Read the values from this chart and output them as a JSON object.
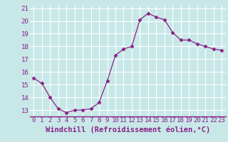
{
  "x": [
    0,
    1,
    2,
    3,
    4,
    5,
    6,
    7,
    8,
    9,
    10,
    11,
    12,
    13,
    14,
    15,
    16,
    17,
    18,
    19,
    20,
    21,
    22,
    23
  ],
  "y": [
    15.5,
    15.1,
    14.0,
    13.1,
    12.8,
    13.0,
    13.0,
    13.1,
    13.6,
    15.3,
    17.3,
    17.8,
    18.0,
    20.1,
    20.6,
    20.3,
    20.1,
    19.1,
    18.5,
    18.5,
    18.2,
    18.0,
    17.8,
    17.7
  ],
  "line_color": "#882288",
  "marker": "D",
  "marker_size": 2.5,
  "background_color": "#c8e8e8",
  "grid_color": "#aacccc",
  "xlabel": "Windchill (Refroidissement éolien,°C)",
  "xlabel_color": "#882288",
  "xlabel_fontsize": 7.5,
  "tick_color": "#882288",
  "tick_fontsize": 6.5,
  "ylim": [
    12.5,
    21.2
  ],
  "xlim": [
    -0.5,
    23.5
  ],
  "yticks": [
    13,
    14,
    15,
    16,
    17,
    18,
    19,
    20,
    21
  ],
  "xticks": [
    0,
    1,
    2,
    3,
    4,
    5,
    6,
    7,
    8,
    9,
    10,
    11,
    12,
    13,
    14,
    15,
    16,
    17,
    18,
    19,
    20,
    21,
    22,
    23
  ]
}
